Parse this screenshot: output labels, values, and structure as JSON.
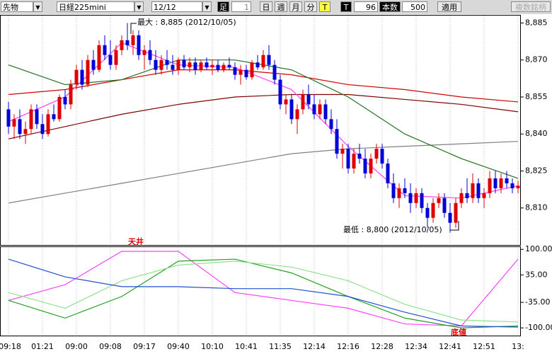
{
  "toolbar": {
    "market": "先物",
    "symbol": "日経225mini",
    "contract": "12/12",
    "bar_label": "足",
    "bar_count": "1",
    "day": "日",
    "week": "週",
    "month": "月",
    "minute": "分",
    "tick": "T",
    "tick2": "T",
    "bars": "96",
    "bars_label": "本数",
    "max_bars": "500",
    "apply": "適用",
    "multi": "複数銘柄"
  },
  "chart_data": [
    {
      "type": "candlestick",
      "up_color": "#e00000",
      "down_color": "#0000d8",
      "categories": [
        "09:18",
        null,
        null,
        null,
        null,
        null,
        "01:21",
        null,
        null,
        null,
        null,
        null,
        "09:00",
        null,
        null,
        null,
        null,
        null,
        "09:08",
        null,
        null,
        null,
        null,
        null,
        "09:17",
        null,
        null,
        null,
        null,
        null,
        "09:40",
        null,
        null,
        null,
        null,
        null,
        "10:10",
        null,
        null,
        null,
        null,
        null,
        "10:41",
        null,
        null,
        null,
        null,
        null,
        "11:35",
        null,
        null,
        null,
        null,
        null,
        "12:14",
        null,
        null,
        null,
        null,
        null,
        "12:16",
        null,
        null,
        null,
        null,
        null,
        "12:28",
        null,
        null,
        null,
        null,
        null,
        "12:34",
        null,
        null,
        null,
        null,
        null,
        "12:41",
        null,
        null,
        null,
        null,
        null,
        "12:51",
        null,
        null,
        null,
        null,
        null,
        "13:"
      ],
      "candles": [
        [
          8850,
          8853,
          8840,
          8843
        ],
        [
          8843,
          8848,
          8838,
          8846
        ],
        [
          8846,
          8850,
          8838,
          8840
        ],
        [
          8840,
          8845,
          8836,
          8842
        ],
        [
          8842,
          8852,
          8840,
          8850
        ],
        [
          8850,
          8852,
          8842,
          8844
        ],
        [
          8844,
          8848,
          8838,
          8840
        ],
        [
          8840,
          8850,
          8839,
          8848
        ],
        [
          8848,
          8852,
          8845,
          8846
        ],
        [
          8846,
          8856,
          8845,
          8855
        ],
        [
          8855,
          8858,
          8850,
          8852
        ],
        [
          8852,
          8862,
          8850,
          8860
        ],
        [
          8860,
          8868,
          8858,
          8866
        ],
        [
          8866,
          8870,
          8858,
          8860
        ],
        [
          8860,
          8872,
          8859,
          8870
        ],
        [
          8870,
          8874,
          8864,
          8866
        ],
        [
          8866,
          8878,
          8865,
          8876
        ],
        [
          8876,
          8880,
          8870,
          8872
        ],
        [
          8872,
          8878,
          8866,
          8868
        ],
        [
          8868,
          8876,
          8866,
          8874
        ],
        [
          8874,
          8880,
          8872,
          8878
        ],
        [
          8878,
          8885,
          8874,
          8876
        ],
        [
          8876,
          8882,
          8872,
          8880
        ],
        [
          8880,
          8882,
          8870,
          8872
        ],
        [
          8872,
          8876,
          8866,
          8874
        ],
        [
          8874,
          8878,
          8868,
          8870
        ],
        [
          8870,
          8874,
          8864,
          8866
        ],
        [
          8866,
          8872,
          8864,
          8870
        ],
        [
          8870,
          8874,
          8866,
          8868
        ],
        [
          8868,
          8872,
          8864,
          8866
        ],
        [
          8866,
          8871,
          8864,
          8870
        ],
        [
          8870,
          8872,
          8866,
          8867
        ],
        [
          8867,
          8871,
          8865,
          8869
        ],
        [
          8869,
          8871,
          8864,
          8866
        ],
        [
          8866,
          8870,
          8865,
          8869
        ],
        [
          8869,
          8871,
          8866,
          8867
        ],
        [
          8867,
          8870,
          8864,
          8868
        ],
        [
          8868,
          8870,
          8865,
          8866
        ],
        [
          8866,
          8869,
          8865,
          8868
        ],
        [
          8868,
          8871,
          8866,
          8867
        ],
        [
          8867,
          8869,
          8862,
          8864
        ],
        [
          8864,
          8868,
          8860,
          8866
        ],
        [
          8866,
          8868,
          8862,
          8863
        ],
        [
          8863,
          8870,
          8862,
          8869
        ],
        [
          8869,
          8872,
          8866,
          8867
        ],
        [
          8867,
          8874,
          8866,
          8872
        ],
        [
          8872,
          8876,
          8866,
          8868
        ],
        [
          8868,
          8870,
          8860,
          8862
        ],
        [
          8862,
          8864,
          8850,
          8852
        ],
        [
          8852,
          8856,
          8848,
          8854
        ],
        [
          8854,
          8856,
          8844,
          8846
        ],
        [
          8846,
          8852,
          8840,
          8850
        ],
        [
          8850,
          8858,
          8848,
          8856
        ],
        [
          8856,
          8860,
          8850,
          8852
        ],
        [
          8852,
          8856,
          8846,
          8848
        ],
        [
          8848,
          8854,
          8846,
          8852
        ],
        [
          8852,
          8854,
          8844,
          8846
        ],
        [
          8846,
          8850,
          8840,
          8842
        ],
        [
          8842,
          8846,
          8830,
          8832
        ],
        [
          8832,
          8836,
          8826,
          8834
        ],
        [
          8834,
          8836,
          8824,
          8826
        ],
        [
          8826,
          8834,
          8824,
          8832
        ],
        [
          8832,
          8836,
          8828,
          8830
        ],
        [
          8830,
          8834,
          8822,
          8824
        ],
        [
          8824,
          8832,
          8822,
          8830
        ],
        [
          8830,
          8836,
          8828,
          8834
        ],
        [
          8834,
          8836,
          8826,
          8828
        ],
        [
          8828,
          8830,
          8818,
          8820
        ],
        [
          8820,
          8824,
          8812,
          8814
        ],
        [
          8814,
          8820,
          8810,
          8818
        ],
        [
          8818,
          8822,
          8814,
          8816
        ],
        [
          8816,
          8820,
          8808,
          8812
        ],
        [
          8812,
          8818,
          8810,
          8816
        ],
        [
          8816,
          8818,
          8808,
          8810
        ],
        [
          8810,
          8812,
          8802,
          8806
        ],
        [
          8806,
          8814,
          8804,
          8812
        ],
        [
          8812,
          8816,
          8810,
          8814
        ],
        [
          8814,
          8816,
          8806,
          8808
        ],
        [
          8808,
          8812,
          8800,
          8804
        ],
        [
          8804,
          8814,
          8802,
          8812
        ],
        [
          8812,
          8818,
          8810,
          8816
        ],
        [
          8816,
          8822,
          8812,
          8814
        ],
        [
          8814,
          8824,
          8812,
          8820
        ],
        [
          8820,
          8822,
          8812,
          8814
        ],
        [
          8814,
          8818,
          8810,
          8816
        ],
        [
          8816,
          8825,
          8814,
          8822
        ],
        [
          8822,
          8825,
          8816,
          8818
        ],
        [
          8818,
          8824,
          8816,
          8822
        ],
        [
          8822,
          8825,
          8818,
          8820
        ],
        [
          8820,
          8822,
          8816,
          8818
        ],
        [
          8818,
          8821,
          8816,
          8819
        ]
      ],
      "series": [
        {
          "color": "#808080",
          "x": [
            0,
            10,
            20,
            30,
            40,
            50,
            60,
            70,
            80,
            90
          ],
          "values": [
            8812,
            8816,
            8820,
            8824,
            8828,
            8832,
            8834,
            8835,
            8836,
            8837
          ]
        },
        {
          "color": "#800000",
          "x": [
            0,
            10,
            20,
            30,
            40,
            50,
            60,
            70,
            80,
            90
          ],
          "values": [
            8838,
            8843,
            8848,
            8852,
            8855,
            8856,
            8856,
            8854,
            8852,
            8849
          ]
        },
        {
          "color": "#d00000",
          "x": [
            0,
            10,
            20,
            30,
            40,
            50,
            60,
            70,
            80,
            90
          ],
          "values": [
            8856,
            8858,
            8862,
            8866,
            8866,
            8864,
            8860,
            8858,
            8855,
            8853
          ]
        },
        {
          "color": "#207020",
          "x": [
            0,
            10,
            20,
            30,
            40,
            50,
            60,
            70,
            80,
            90
          ],
          "values": [
            8868,
            8860,
            8862,
            8870,
            8870,
            8866,
            8855,
            8840,
            8830,
            8822
          ]
        },
        {
          "color": "#ff40ff",
          "x": [
            0,
            10,
            20,
            30,
            40,
            50,
            60,
            70,
            80,
            90
          ],
          "values": [
            8845,
            8855,
            8877,
            8868,
            8867,
            8858,
            8835,
            8815,
            8814,
            8819
          ]
        }
      ],
      "ylim": [
        8795,
        8888
      ],
      "yticks": [
        {
          "value": 8885,
          "label": "8,885"
        },
        {
          "value": 8870,
          "label": "8,870"
        },
        {
          "value": 8855,
          "label": "8,855"
        },
        {
          "value": 8840,
          "label": "8,840"
        },
        {
          "value": 8825,
          "label": "8,825"
        },
        {
          "value": 8810,
          "label": "8,810"
        }
      ],
      "annotations": [
        "最大 : 8,885 (2012/10/05)",
        "最低 : 8,800 (2012/10/05)"
      ]
    },
    {
      "type": "line",
      "series": [
        {
          "color": "#ff40ff",
          "x": [
            0,
            10,
            20,
            30,
            40,
            50,
            60,
            70,
            80,
            90
          ],
          "values": [
            -30,
            10,
            95,
            95,
            -10,
            -30,
            -50,
            -90,
            -95,
            75
          ]
        },
        {
          "color": "#20a020",
          "x": [
            0,
            10,
            20,
            30,
            40,
            50,
            60,
            70,
            80,
            90
          ],
          "values": [
            -30,
            -75,
            -20,
            70,
            75,
            40,
            -20,
            -75,
            -100,
            -95
          ]
        },
        {
          "color": "#90e090",
          "x": [
            0,
            10,
            20,
            30,
            40,
            50,
            60,
            70,
            80,
            90
          ],
          "values": [
            -10,
            -50,
            20,
            60,
            70,
            55,
            20,
            -40,
            -80,
            -85
          ]
        },
        {
          "color": "#2050d0",
          "x": [
            0,
            10,
            20,
            30,
            40,
            50,
            60,
            70,
            80,
            90
          ],
          "values": [
            75,
            30,
            5,
            5,
            0,
            0,
            -20,
            -60,
            -95,
            -98
          ]
        }
      ],
      "ylim": [
        -116,
        104
      ],
      "yticks": [
        {
          "value": 100,
          "label": "100.00"
        },
        {
          "value": 35,
          "label": "35.00"
        },
        {
          "value": -35,
          "label": "-35.00"
        },
        {
          "value": -100,
          "label": "-100.00"
        }
      ],
      "annotations": [
        "天井",
        "底値"
      ]
    }
  ]
}
